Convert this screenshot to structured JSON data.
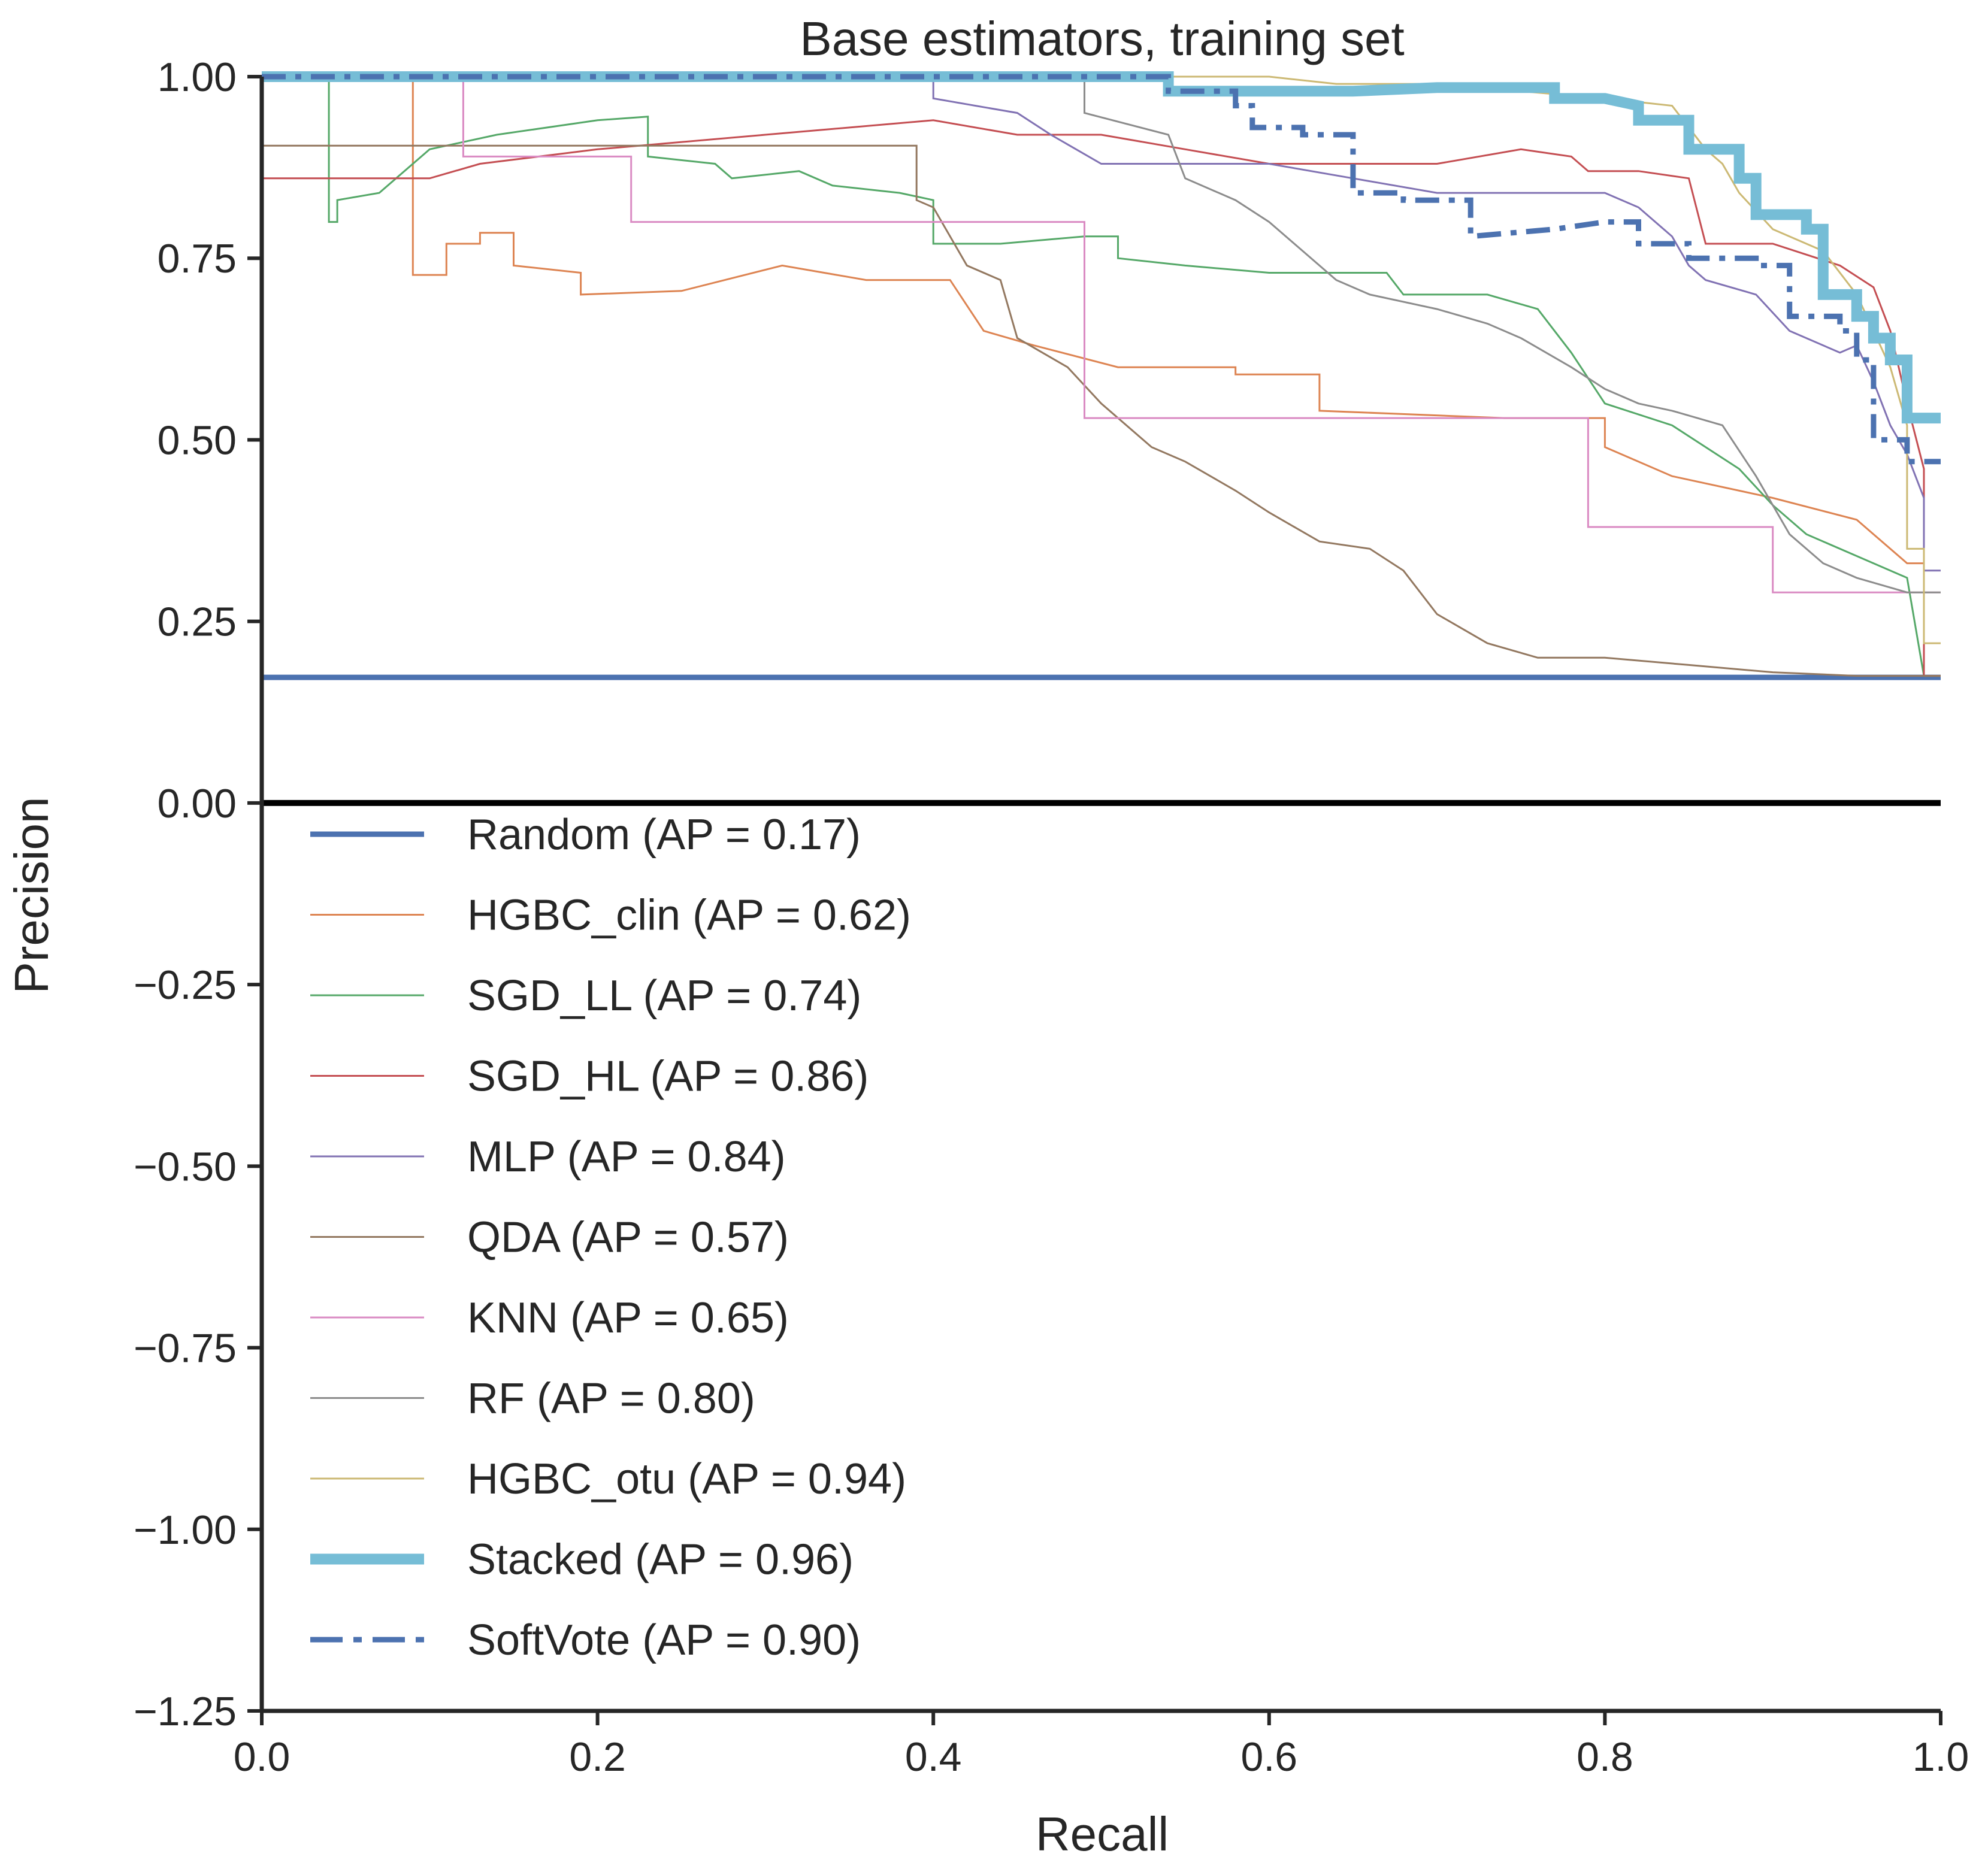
{
  "chart_data": {
    "type": "line",
    "title": "Base estimators, training set",
    "xlabel": "Recall",
    "ylabel": "Precision",
    "xlim": [
      0.0,
      1.0
    ],
    "ylim": [
      -1.25,
      1.0
    ],
    "xticks": [
      "0.0",
      "0.2",
      "0.4",
      "0.6",
      "0.8",
      "1.0"
    ],
    "yticks": [
      "−1.25",
      "−1.00",
      "−0.75",
      "−0.50",
      "−0.25",
      "0.00",
      "0.25",
      "0.50",
      "0.75",
      "1.00"
    ],
    "grid": false,
    "zero_line": 0.0,
    "legend_placement": "lower-left",
    "series": [
      {
        "name": "Random (AP = 0.17)",
        "color": "#4c72b0",
        "style": "solid",
        "weight": "thick",
        "points": [
          [
            0,
            0.173
          ],
          [
            1,
            0.173
          ]
        ]
      },
      {
        "name": "HGBC_clin (AP = 0.62)",
        "color": "#dd8452",
        "style": "solid",
        "weight": "thin",
        "points": [
          [
            0,
            1.0
          ],
          [
            0.09,
            1.0
          ],
          [
            0.09,
            0.727
          ],
          [
            0.11,
            0.727
          ],
          [
            0.11,
            0.77
          ],
          [
            0.13,
            0.77
          ],
          [
            0.13,
            0.785
          ],
          [
            0.15,
            0.785
          ],
          [
            0.15,
            0.74
          ],
          [
            0.19,
            0.73
          ],
          [
            0.19,
            0.7
          ],
          [
            0.25,
            0.705
          ],
          [
            0.31,
            0.74
          ],
          [
            0.36,
            0.72
          ],
          [
            0.41,
            0.72
          ],
          [
            0.43,
            0.65
          ],
          [
            0.46,
            0.63
          ],
          [
            0.51,
            0.6
          ],
          [
            0.58,
            0.6
          ],
          [
            0.58,
            0.59
          ],
          [
            0.63,
            0.59
          ],
          [
            0.63,
            0.54
          ],
          [
            0.74,
            0.53
          ],
          [
            0.8,
            0.53
          ],
          [
            0.8,
            0.49
          ],
          [
            0.84,
            0.45
          ],
          [
            0.9,
            0.42
          ],
          [
            0.95,
            0.39
          ],
          [
            0.98,
            0.33
          ],
          [
            0.99,
            0.33
          ],
          [
            0.99,
            0.175
          ],
          [
            1.0,
            0.175
          ]
        ]
      },
      {
        "name": "SGD_LL (AP = 0.74)",
        "color": "#55a868",
        "style": "solid",
        "weight": "thin",
        "points": [
          [
            0,
            1.0
          ],
          [
            0.04,
            1.0
          ],
          [
            0.04,
            0.8
          ],
          [
            0.045,
            0.8
          ],
          [
            0.045,
            0.83
          ],
          [
            0.07,
            0.84
          ],
          [
            0.1,
            0.9
          ],
          [
            0.14,
            0.92
          ],
          [
            0.2,
            0.94
          ],
          [
            0.23,
            0.945
          ],
          [
            0.23,
            0.89
          ],
          [
            0.27,
            0.88
          ],
          [
            0.28,
            0.86
          ],
          [
            0.32,
            0.87
          ],
          [
            0.34,
            0.85
          ],
          [
            0.38,
            0.84
          ],
          [
            0.4,
            0.83
          ],
          [
            0.4,
            0.77
          ],
          [
            0.44,
            0.77
          ],
          [
            0.49,
            0.78
          ],
          [
            0.51,
            0.78
          ],
          [
            0.51,
            0.75
          ],
          [
            0.55,
            0.74
          ],
          [
            0.6,
            0.73
          ],
          [
            0.67,
            0.73
          ],
          [
            0.68,
            0.7
          ],
          [
            0.73,
            0.7
          ],
          [
            0.76,
            0.68
          ],
          [
            0.78,
            0.62
          ],
          [
            0.8,
            0.55
          ],
          [
            0.84,
            0.52
          ],
          [
            0.88,
            0.46
          ],
          [
            0.9,
            0.41
          ],
          [
            0.92,
            0.37
          ],
          [
            0.95,
            0.34
          ],
          [
            0.98,
            0.31
          ],
          [
            0.99,
            0.175
          ],
          [
            1.0,
            0.175
          ]
        ]
      },
      {
        "name": "SGD_HL (AP = 0.86)",
        "color": "#c44e52",
        "style": "solid",
        "weight": "thin",
        "points": [
          [
            0,
            0.86
          ],
          [
            0.1,
            0.86
          ],
          [
            0.13,
            0.88
          ],
          [
            0.2,
            0.9
          ],
          [
            0.3,
            0.92
          ],
          [
            0.4,
            0.94
          ],
          [
            0.45,
            0.92
          ],
          [
            0.5,
            0.92
          ],
          [
            0.55,
            0.9
          ],
          [
            0.6,
            0.88
          ],
          [
            0.65,
            0.88
          ],
          [
            0.7,
            0.88
          ],
          [
            0.75,
            0.9
          ],
          [
            0.78,
            0.89
          ],
          [
            0.79,
            0.87
          ],
          [
            0.82,
            0.87
          ],
          [
            0.85,
            0.86
          ],
          [
            0.86,
            0.77
          ],
          [
            0.9,
            0.77
          ],
          [
            0.94,
            0.74
          ],
          [
            0.96,
            0.71
          ],
          [
            0.97,
            0.65
          ],
          [
            0.98,
            0.55
          ],
          [
            0.99,
            0.46
          ],
          [
            0.99,
            0.175
          ],
          [
            1.0,
            0.175
          ]
        ]
      },
      {
        "name": "MLP (AP = 0.84)",
        "color": "#8172b3",
        "style": "solid",
        "weight": "thin",
        "points": [
          [
            0,
            1.0
          ],
          [
            0.4,
            1.0
          ],
          [
            0.4,
            0.97
          ],
          [
            0.45,
            0.95
          ],
          [
            0.47,
            0.92
          ],
          [
            0.5,
            0.88
          ],
          [
            0.56,
            0.88
          ],
          [
            0.6,
            0.88
          ],
          [
            0.65,
            0.86
          ],
          [
            0.7,
            0.84
          ],
          [
            0.75,
            0.84
          ],
          [
            0.8,
            0.84
          ],
          [
            0.82,
            0.82
          ],
          [
            0.84,
            0.78
          ],
          [
            0.85,
            0.74
          ],
          [
            0.86,
            0.72
          ],
          [
            0.89,
            0.7
          ],
          [
            0.91,
            0.65
          ],
          [
            0.94,
            0.62
          ],
          [
            0.95,
            0.63
          ],
          [
            0.96,
            0.58
          ],
          [
            0.97,
            0.52
          ],
          [
            0.98,
            0.48
          ],
          [
            0.99,
            0.42
          ],
          [
            0.99,
            0.32
          ],
          [
            1.0,
            0.32
          ]
        ]
      },
      {
        "name": "QDA (AP = 0.57)",
        "color": "#937860",
        "style": "solid",
        "weight": "thin",
        "points": [
          [
            0,
            0.905
          ],
          [
            0.39,
            0.905
          ],
          [
            0.39,
            0.83
          ],
          [
            0.4,
            0.82
          ],
          [
            0.42,
            0.74
          ],
          [
            0.44,
            0.72
          ],
          [
            0.45,
            0.64
          ],
          [
            0.48,
            0.6
          ],
          [
            0.5,
            0.55
          ],
          [
            0.53,
            0.49
          ],
          [
            0.55,
            0.47
          ],
          [
            0.58,
            0.43
          ],
          [
            0.6,
            0.4
          ],
          [
            0.63,
            0.36
          ],
          [
            0.66,
            0.35
          ],
          [
            0.68,
            0.32
          ],
          [
            0.7,
            0.26
          ],
          [
            0.73,
            0.22
          ],
          [
            0.76,
            0.2
          ],
          [
            0.8,
            0.2
          ],
          [
            0.85,
            0.19
          ],
          [
            0.9,
            0.18
          ],
          [
            0.95,
            0.175
          ],
          [
            1.0,
            0.175
          ]
        ]
      },
      {
        "name": "KNN (AP = 0.65)",
        "color": "#da8bc3",
        "style": "solid",
        "weight": "thin",
        "points": [
          [
            0,
            1.0
          ],
          [
            0.12,
            1.0
          ],
          [
            0.12,
            0.89
          ],
          [
            0.22,
            0.89
          ],
          [
            0.22,
            0.8
          ],
          [
            0.49,
            0.8
          ],
          [
            0.49,
            0.53
          ],
          [
            0.79,
            0.53
          ],
          [
            0.79,
            0.38
          ],
          [
            0.9,
            0.38
          ],
          [
            0.9,
            0.29
          ],
          [
            1.0,
            0.29
          ]
        ]
      },
      {
        "name": "RF (AP = 0.80)",
        "color": "#8c8c8c",
        "style": "solid",
        "weight": "thin",
        "points": [
          [
            0,
            1.0
          ],
          [
            0.49,
            1.0
          ],
          [
            0.49,
            0.95
          ],
          [
            0.54,
            0.92
          ],
          [
            0.55,
            0.86
          ],
          [
            0.58,
            0.83
          ],
          [
            0.6,
            0.8
          ],
          [
            0.62,
            0.76
          ],
          [
            0.64,
            0.72
          ],
          [
            0.66,
            0.7
          ],
          [
            0.7,
            0.68
          ],
          [
            0.73,
            0.66
          ],
          [
            0.75,
            0.64
          ],
          [
            0.78,
            0.6
          ],
          [
            0.8,
            0.57
          ],
          [
            0.82,
            0.55
          ],
          [
            0.84,
            0.54
          ],
          [
            0.87,
            0.52
          ],
          [
            0.89,
            0.45
          ],
          [
            0.91,
            0.37
          ],
          [
            0.93,
            0.33
          ],
          [
            0.95,
            0.31
          ],
          [
            0.98,
            0.29
          ],
          [
            1.0,
            0.29
          ]
        ]
      },
      {
        "name": "HGBC_otu (AP = 0.94)",
        "color": "#ccb974",
        "style": "solid",
        "weight": "thin",
        "points": [
          [
            0,
            1.0
          ],
          [
            0.6,
            1.0
          ],
          [
            0.64,
            0.99
          ],
          [
            0.7,
            0.99
          ],
          [
            0.75,
            0.98
          ],
          [
            0.8,
            0.97
          ],
          [
            0.84,
            0.96
          ],
          [
            0.86,
            0.9
          ],
          [
            0.87,
            0.88
          ],
          [
            0.88,
            0.84
          ],
          [
            0.9,
            0.79
          ],
          [
            0.93,
            0.76
          ],
          [
            0.95,
            0.7
          ],
          [
            0.97,
            0.6
          ],
          [
            0.98,
            0.52
          ],
          [
            0.98,
            0.35
          ],
          [
            0.99,
            0.35
          ],
          [
            0.99,
            0.22
          ],
          [
            1.0,
            0.22
          ]
        ]
      },
      {
        "name": "Stacked (AP = 0.96)",
        "color": "#76bdd6",
        "style": "solid",
        "weight": "xthick",
        "points": [
          [
            0,
            1.0
          ],
          [
            0.54,
            1.0
          ],
          [
            0.54,
            0.98
          ],
          [
            0.6,
            0.98
          ],
          [
            0.65,
            0.98
          ],
          [
            0.7,
            0.985
          ],
          [
            0.77,
            0.985
          ],
          [
            0.77,
            0.97
          ],
          [
            0.8,
            0.97
          ],
          [
            0.82,
            0.96
          ],
          [
            0.82,
            0.94
          ],
          [
            0.85,
            0.94
          ],
          [
            0.85,
            0.9
          ],
          [
            0.88,
            0.9
          ],
          [
            0.88,
            0.86
          ],
          [
            0.89,
            0.86
          ],
          [
            0.89,
            0.81
          ],
          [
            0.92,
            0.81
          ],
          [
            0.92,
            0.79
          ],
          [
            0.93,
            0.79
          ],
          [
            0.93,
            0.7
          ],
          [
            0.95,
            0.7
          ],
          [
            0.95,
            0.67
          ],
          [
            0.96,
            0.67
          ],
          [
            0.96,
            0.64
          ],
          [
            0.97,
            0.64
          ],
          [
            0.97,
            0.61
          ],
          [
            0.98,
            0.61
          ],
          [
            0.98,
            0.53
          ],
          [
            1.0,
            0.53
          ]
        ]
      },
      {
        "name": "SoftVote (AP = 0.90)",
        "color": "#4c72b0",
        "style": "dashdot",
        "weight": "thick",
        "points": [
          [
            0,
            1.0
          ],
          [
            0.54,
            1.0
          ],
          [
            0.54,
            0.98
          ],
          [
            0.58,
            0.98
          ],
          [
            0.58,
            0.96
          ],
          [
            0.59,
            0.96
          ],
          [
            0.59,
            0.93
          ],
          [
            0.62,
            0.93
          ],
          [
            0.62,
            0.92
          ],
          [
            0.65,
            0.92
          ],
          [
            0.65,
            0.84
          ],
          [
            0.68,
            0.84
          ],
          [
            0.68,
            0.83
          ],
          [
            0.72,
            0.83
          ],
          [
            0.72,
            0.78
          ],
          [
            0.77,
            0.79
          ],
          [
            0.8,
            0.8
          ],
          [
            0.82,
            0.8
          ],
          [
            0.82,
            0.77
          ],
          [
            0.85,
            0.77
          ],
          [
            0.85,
            0.75
          ],
          [
            0.89,
            0.75
          ],
          [
            0.89,
            0.74
          ],
          [
            0.91,
            0.74
          ],
          [
            0.91,
            0.67
          ],
          [
            0.94,
            0.67
          ],
          [
            0.94,
            0.65
          ],
          [
            0.95,
            0.65
          ],
          [
            0.95,
            0.61
          ],
          [
            0.96,
            0.61
          ],
          [
            0.96,
            0.5
          ],
          [
            0.98,
            0.5
          ],
          [
            0.98,
            0.47
          ],
          [
            1.0,
            0.47
          ]
        ]
      }
    ]
  }
}
